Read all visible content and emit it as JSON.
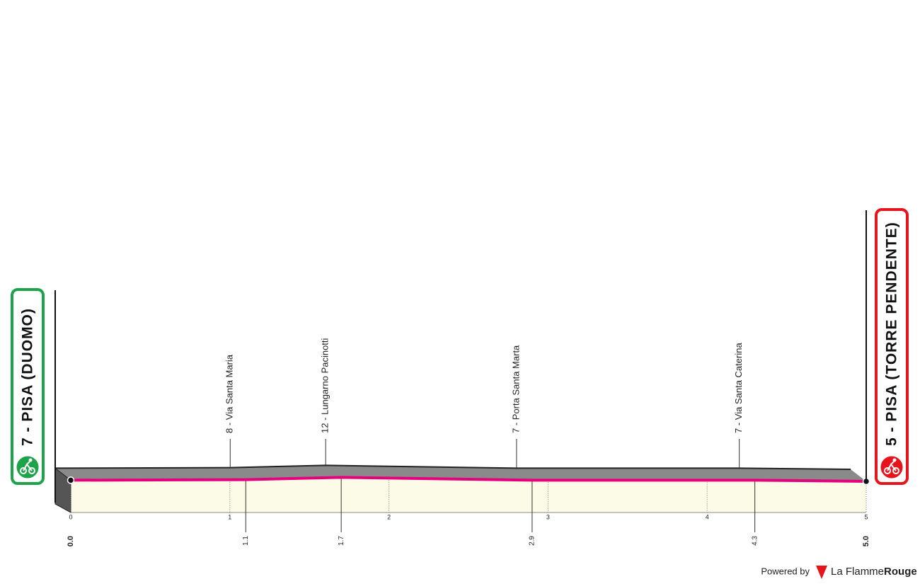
{
  "chart_data": {
    "type": "profile",
    "x": [
      0,
      1.1,
      1.7,
      2.9,
      4.3,
      5
    ],
    "x_labels": [
      "0.0",
      "1.1",
      "1.7",
      "2.9",
      "4.3",
      "5.0"
    ],
    "values": [
      7,
      8,
      12,
      7,
      7,
      5
    ],
    "point_labels": [
      "7 - PISA (DUOMO)",
      "8 - Via Santa Maria",
      "12 - Lungarno Pacinotti",
      "7 - Porta Santa Marta",
      "7 - Via Santa Caterina",
      "5 - PISA (TORRE PENDENTE)"
    ],
    "xlim": [
      0,
      5
    ],
    "xticks": [
      0,
      1,
      2,
      3,
      4,
      5
    ],
    "ylim": [
      -50,
      450
    ],
    "color": "#e6007e",
    "fill": "#fbfbe8",
    "start_color": "#1fa34a",
    "finish_color": "#e8141b"
  },
  "footer": {
    "powered": "Powered by",
    "brand_light": "La Flamme",
    "brand_bold": "Rouge"
  }
}
